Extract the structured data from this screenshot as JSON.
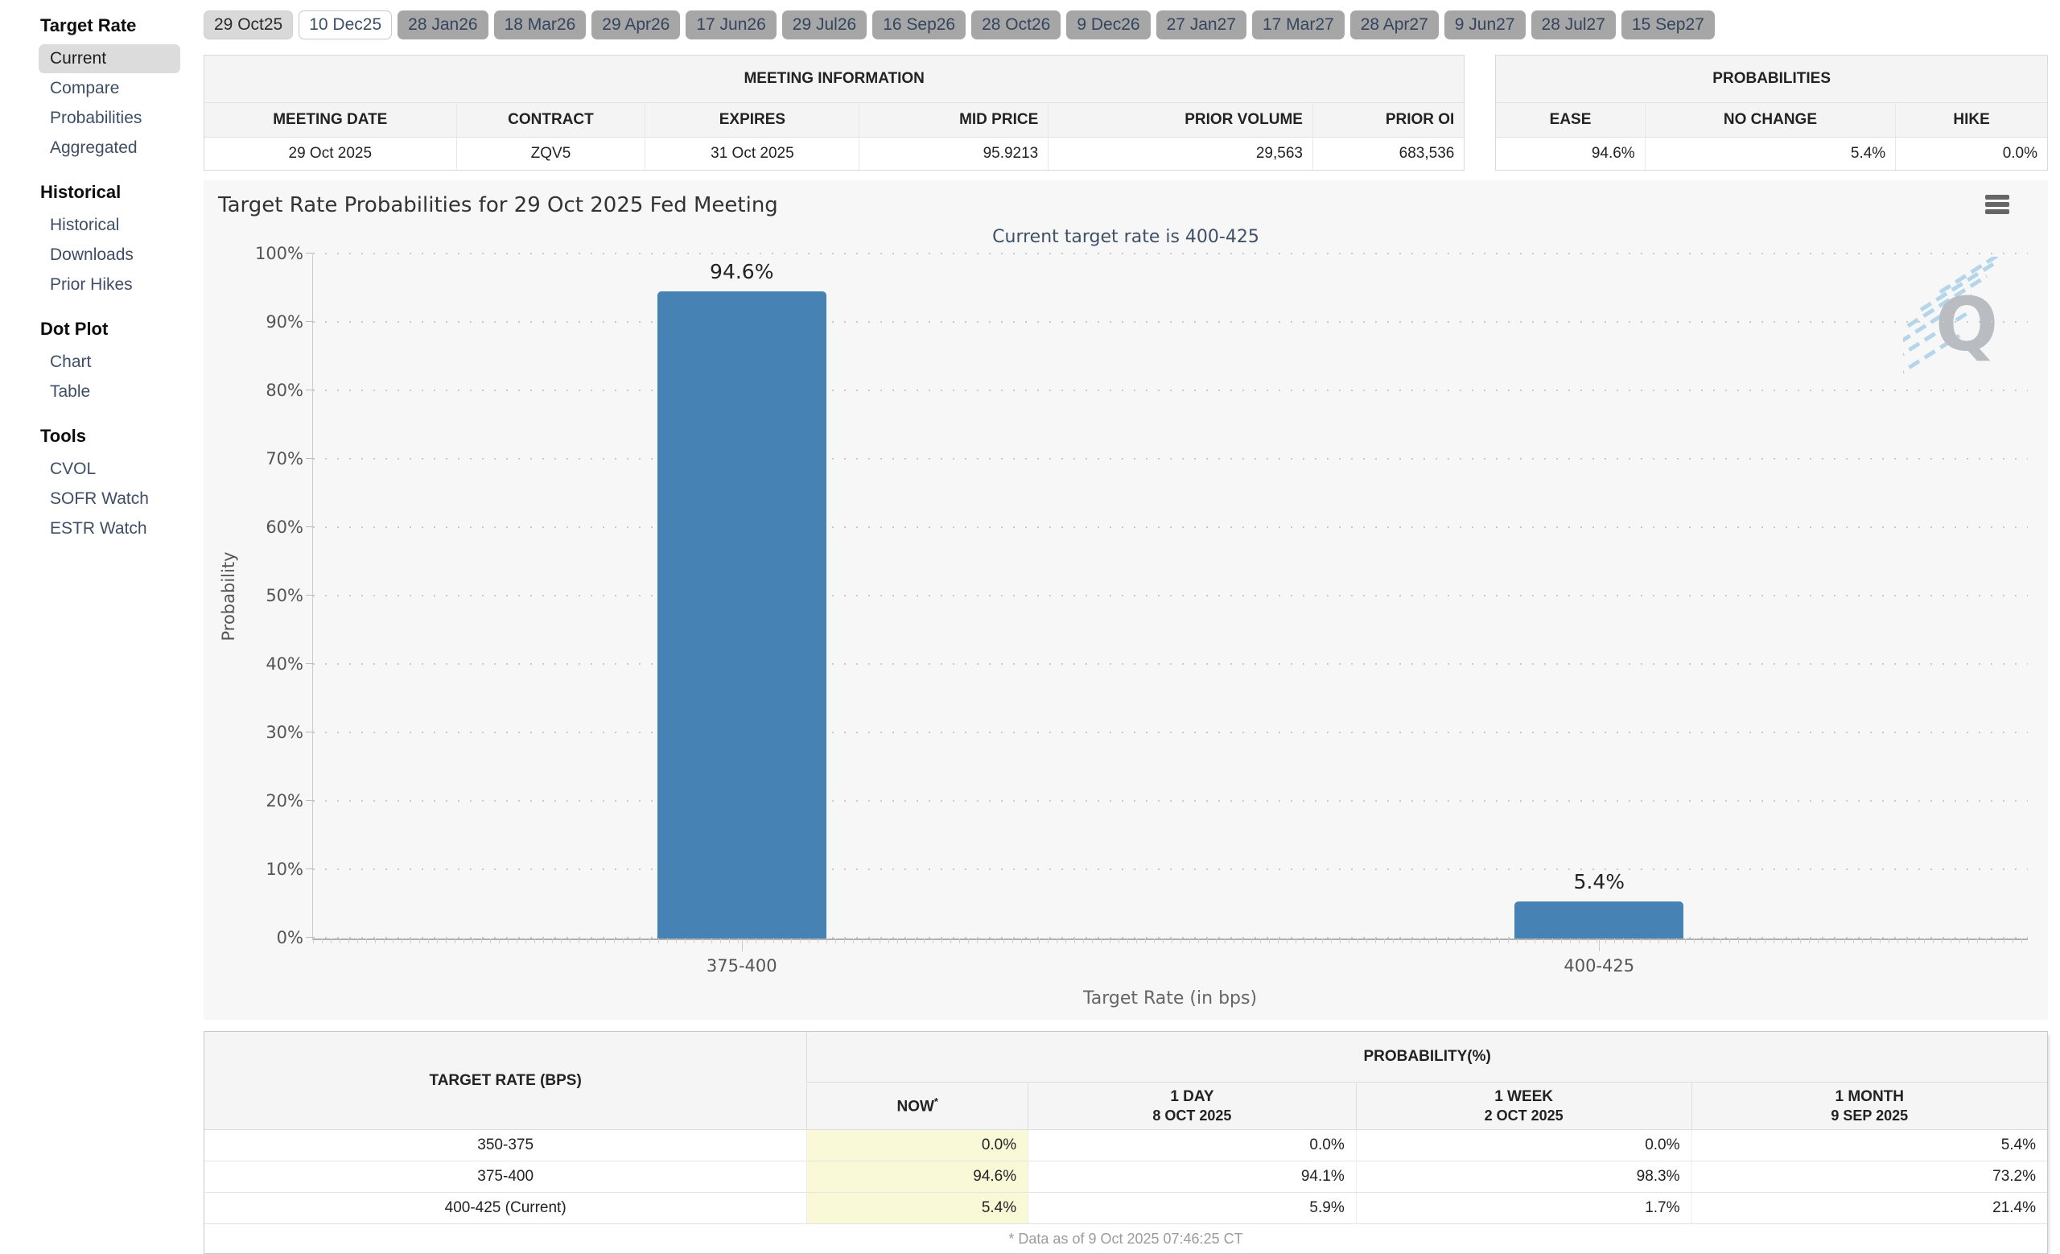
{
  "sidebar": {
    "sections": [
      {
        "title": "Target Rate",
        "items": [
          {
            "label": "Current",
            "selected": true
          },
          {
            "label": "Compare"
          },
          {
            "label": "Probabilities"
          },
          {
            "label": "Aggregated"
          }
        ]
      },
      {
        "title": "Historical",
        "items": [
          {
            "label": "Historical"
          },
          {
            "label": "Downloads"
          },
          {
            "label": "Prior Hikes"
          }
        ]
      },
      {
        "title": "Dot Plot",
        "items": [
          {
            "label": "Chart"
          },
          {
            "label": "Table"
          }
        ]
      },
      {
        "title": "Tools",
        "items": [
          {
            "label": "CVOL"
          },
          {
            "label": "SOFR Watch"
          },
          {
            "label": "ESTR Watch"
          }
        ]
      }
    ]
  },
  "meeting_tabs": [
    {
      "label": "29 Oct25",
      "state": "past"
    },
    {
      "label": "10 Dec25",
      "state": "selected"
    },
    {
      "label": "28 Jan26",
      "state": "future"
    },
    {
      "label": "18 Mar26",
      "state": "future"
    },
    {
      "label": "29 Apr26",
      "state": "future"
    },
    {
      "label": "17 Jun26",
      "state": "future"
    },
    {
      "label": "29 Jul26",
      "state": "future"
    },
    {
      "label": "16 Sep26",
      "state": "future"
    },
    {
      "label": "28 Oct26",
      "state": "future"
    },
    {
      "label": "9 Dec26",
      "state": "future"
    },
    {
      "label": "27 Jan27",
      "state": "future"
    },
    {
      "label": "17 Mar27",
      "state": "future"
    },
    {
      "label": "28 Apr27",
      "state": "future"
    },
    {
      "label": "9 Jun27",
      "state": "future"
    },
    {
      "label": "28 Jul27",
      "state": "future"
    },
    {
      "label": "15 Sep27",
      "state": "future"
    }
  ],
  "meeting_information": {
    "title": "MEETING INFORMATION",
    "columns": [
      {
        "label": "MEETING DATE",
        "align": "c",
        "width": "20%"
      },
      {
        "label": "CONTRACT",
        "align": "c",
        "width": "15%"
      },
      {
        "label": "EXPIRES",
        "align": "c",
        "width": "17%"
      },
      {
        "label": "MID PRICE",
        "align": "r",
        "width": "15%"
      },
      {
        "label": "PRIOR VOLUME",
        "align": "r",
        "width": "21%"
      },
      {
        "label": "PRIOR OI",
        "align": "r",
        "width": "12%"
      }
    ],
    "values": [
      "29 Oct 2025",
      "ZQV5",
      "31 Oct 2025",
      "95.9213",
      "29,563",
      "683,536"
    ]
  },
  "probabilities_panel": {
    "title": "PROBABILITIES",
    "columns": [
      {
        "label": "EASE",
        "align": "r",
        "width": "27%"
      },
      {
        "label": "NO CHANGE",
        "align": "r",
        "width": "45.5%"
      },
      {
        "label": "HIKE",
        "align": "r",
        "width": "27.5%"
      }
    ],
    "values": [
      "94.6%",
      "5.4%",
      "0.0%"
    ]
  },
  "chart_data": {
    "type": "bar",
    "title": "Target Rate Probabilities for 29 Oct 2025 Fed Meeting",
    "subtitle": "Current target rate is 400-425",
    "categories": [
      "375-400",
      "400-425"
    ],
    "values": [
      94.6,
      5.4
    ],
    "value_labels": [
      "94.6%",
      "5.4%"
    ],
    "xlabel": "Target Rate (in bps)",
    "ylabel": "Probability",
    "ylim": [
      0,
      100
    ],
    "y_ticks": [
      "0%",
      "10%",
      "20%",
      "30%",
      "40%",
      "50%",
      "60%",
      "70%",
      "80%",
      "90%",
      "100%"
    ],
    "grid": "dotted horizontal",
    "legend": "none",
    "bar_color": "#4682b4"
  },
  "probability_table": {
    "rate_header": "TARGET RATE (BPS)",
    "group_header": "PROBABILITY(%)",
    "col_widths": [
      "32.7%",
      "12%",
      "17.8%",
      "18.2%",
      "19.3%"
    ],
    "sub_headers": [
      {
        "label": "NOW",
        "sup": "*",
        "date": ""
      },
      {
        "label": "1 DAY",
        "sup": "",
        "date": "8 OCT 2025"
      },
      {
        "label": "1 WEEK",
        "sup": "",
        "date": "2 OCT 2025"
      },
      {
        "label": "1 MONTH",
        "sup": "",
        "date": "9 SEP 2025"
      }
    ],
    "rows": [
      [
        "350-375",
        "0.0%",
        "0.0%",
        "0.0%",
        "5.4%"
      ],
      [
        "375-400",
        "94.6%",
        "94.1%",
        "98.3%",
        "73.2%"
      ],
      [
        "400-425 (Current)",
        "5.4%",
        "5.9%",
        "1.7%",
        "21.4%"
      ]
    ],
    "footnote": "* Data as of 9 Oct 2025 07:46:25 CT"
  },
  "colors": {
    "bar": "#4682b4",
    "now_column_highlight": "#f9f9d8",
    "chart_background": "#f7f7f7",
    "tab_inactive_bg": "#a6a6a6",
    "tab_selected_bg": "#ffffff",
    "link_text": "#3e4e66"
  }
}
